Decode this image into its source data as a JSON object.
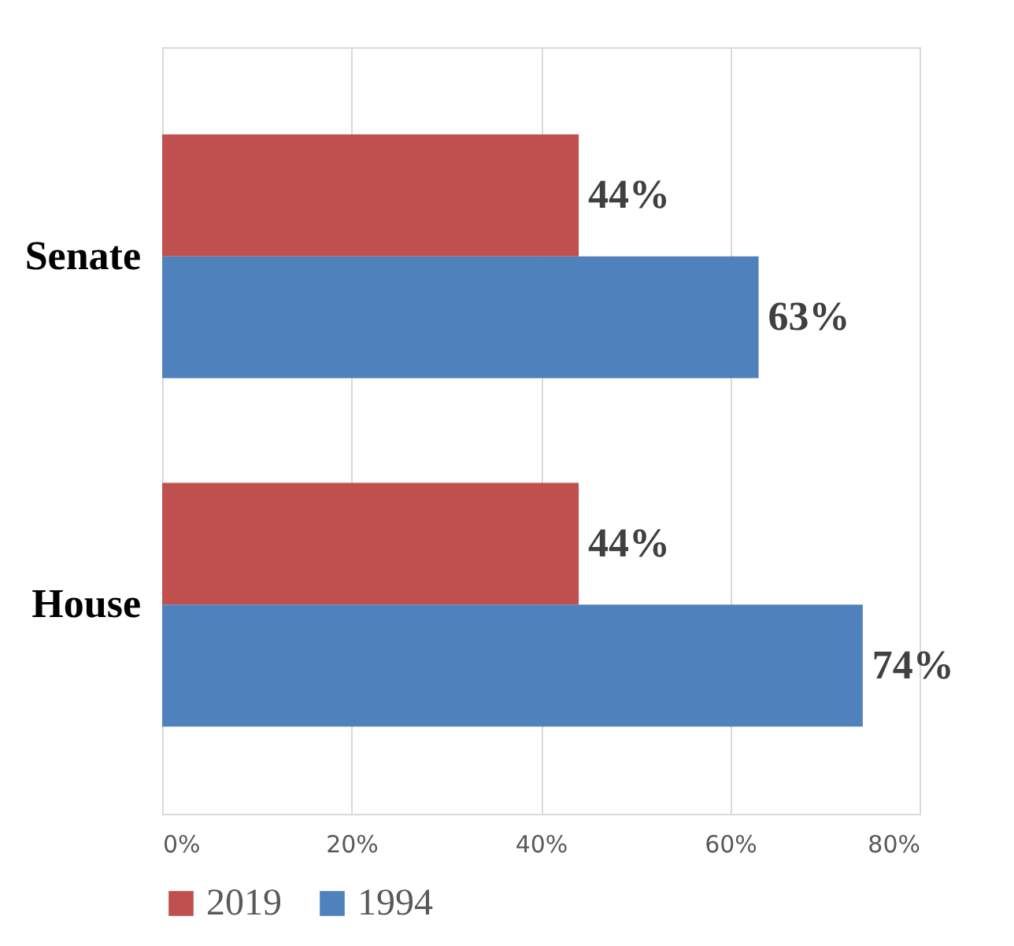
{
  "chart_data": {
    "type": "bar",
    "orientation": "horizontal",
    "categories": [
      "Senate",
      "House"
    ],
    "series": [
      {
        "name": "2019",
        "color": "#c0504d",
        "values": [
          44,
          44
        ],
        "value_labels": [
          "44%",
          "44%"
        ]
      },
      {
        "name": "1994",
        "color": "#4f81bd",
        "values": [
          63,
          74
        ],
        "value_labels": [
          "63%",
          "74%"
        ]
      }
    ],
    "xlim": [
      0,
      80
    ],
    "xticks": [
      {
        "value": 0,
        "label": "0%"
      },
      {
        "value": 20,
        "label": "20%"
      },
      {
        "value": 40,
        "label": "40%"
      },
      {
        "value": 60,
        "label": "60%"
      },
      {
        "value": 80,
        "label": "80%"
      }
    ],
    "grid": "x",
    "legend": "bottom"
  }
}
